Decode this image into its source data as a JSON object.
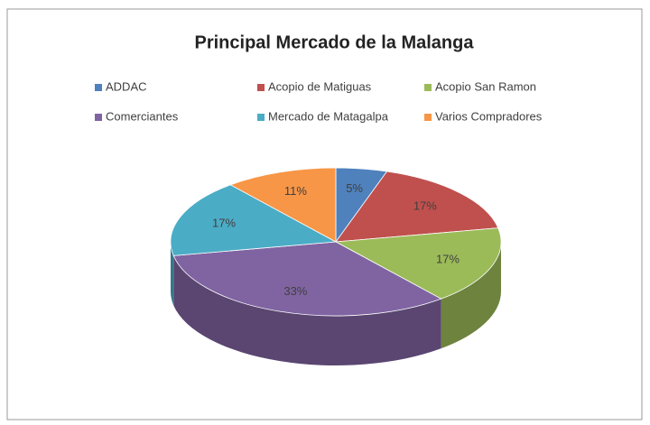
{
  "chart_data": {
    "type": "pie",
    "title": "Principal Mercado de la Malanga",
    "categories": [
      "ADDAC",
      "Acopio de Matiguas",
      "Acopio San Ramon",
      "Comerciantes",
      "Mercado de Matagalpa",
      "Varios Compradores"
    ],
    "values": [
      5,
      17,
      17,
      33,
      17,
      11
    ],
    "value_labels": [
      "5%",
      "17%",
      "17%",
      "33%",
      "17%",
      "11%"
    ],
    "colors": [
      "#4f81bd",
      "#c0504d",
      "#9bbb59",
      "#8064a2",
      "#4bacc6",
      "#f79646"
    ],
    "legend": "top"
  }
}
